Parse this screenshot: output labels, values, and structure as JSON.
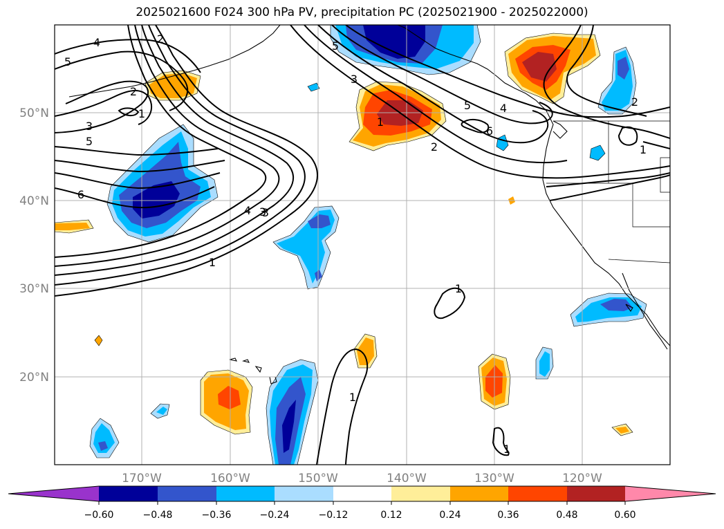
{
  "title": "2025021600 F024 300 hPa PV, precipitation PC (2025021900 - 2025022000)",
  "lon_ticks": [
    "170°W",
    "160°W",
    "150°W",
    "140°W",
    "130°W",
    "120°W"
  ],
  "lat_ticks": [
    "50°N",
    "40°N",
    "30°N",
    "20°N"
  ],
  "colorbar": {
    "labels": [
      "−0.60",
      "−0.48",
      "−0.36",
      "−0.24",
      "−0.12",
      "0.12",
      "0.24",
      "0.36",
      "0.48",
      "0.60"
    ],
    "colors": [
      "#9933cc",
      "#000099",
      "#3355cc",
      "#00bbff",
      "#aaddff",
      "#ffffff",
      "#ffee99",
      "#ffa500",
      "#ff4500",
      "#b22222",
      "#ff88aa"
    ]
  },
  "contour_labels": [
    "4",
    "2",
    "5",
    "2",
    "3",
    "5",
    "6",
    "5",
    "3",
    "1",
    "5",
    "6",
    "2",
    "4",
    "3",
    "2",
    "1",
    "1",
    "4",
    "3",
    "1",
    "1",
    "1",
    "1"
  ]
}
